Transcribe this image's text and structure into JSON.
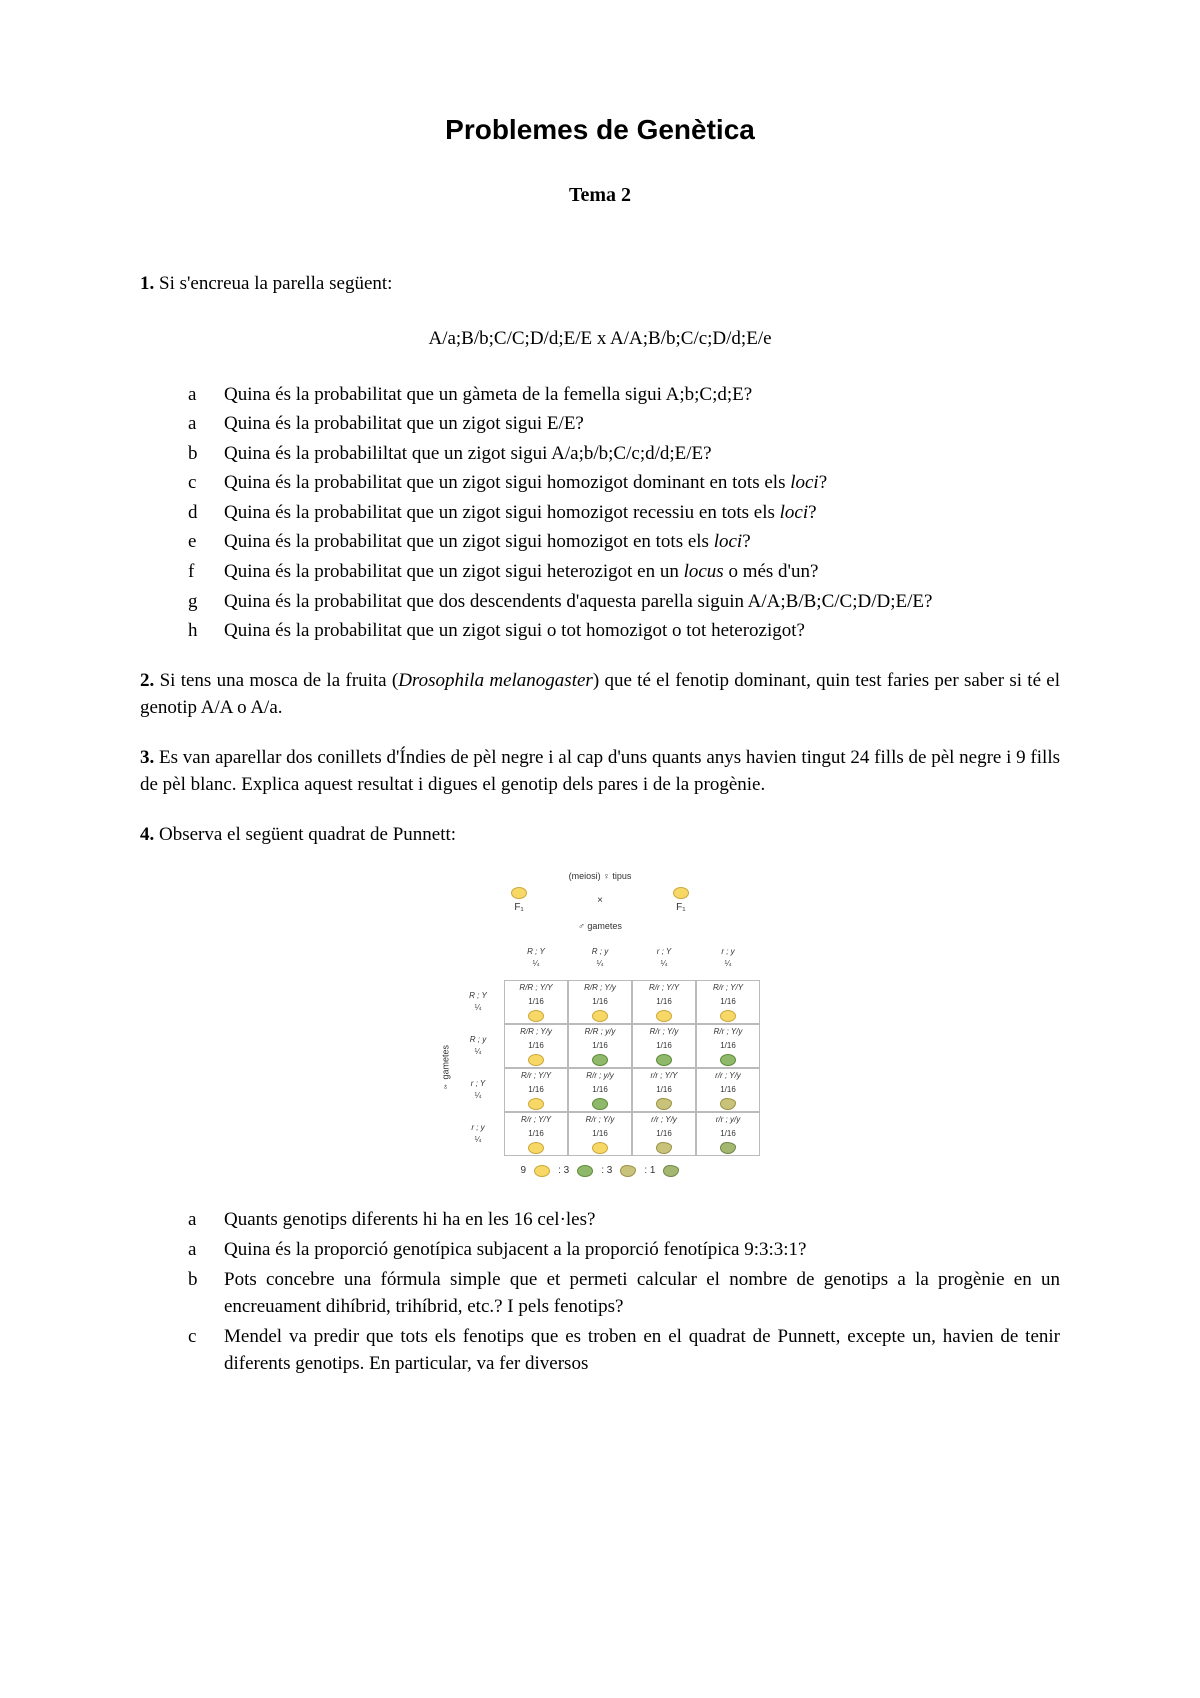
{
  "title": "Problemes de Genètica",
  "subtitle": "Tema 2",
  "p1": {
    "num": "1.",
    "intro": "Si s'encreua la parella següent:",
    "cross": "A/a;B/b;C/C;D/d;E/E     x     A/A;B/b;C/c;D/d;E/e",
    "items": [
      {
        "l": "a",
        "t": "Quina és la probabilitat que un gàmeta de la femella sigui A;b;C;d;E?"
      },
      {
        "l": "a",
        "t": "Quina és la probabilitat que un zigot sigui E/E?"
      },
      {
        "l": "b",
        "t": "Quina és la probabililtat que un zigot sigui A/a;b/b;C/c;d/d;E/E?"
      },
      {
        "l": "c",
        "t_html": "Quina és la probabilitat que un zigot sigui homozigot dominant en tots els <span class=\"italic\">loci</span>?"
      },
      {
        "l": "d",
        "t_html": "Quina és la probabilitat que un zigot sigui homozigot recessiu en tots els <span class=\"italic\">loci</span>?"
      },
      {
        "l": "e",
        "t_html": "Quina és la probabilitat que un zigot sigui homozigot en tots els <span class=\"italic\">loci</span>?"
      },
      {
        "l": "f",
        "t_html": "Quina és la probabilitat que un zigot sigui heterozigot en un <span class=\"italic\">locus</span> o més d'un?"
      },
      {
        "l": "g",
        "t": "Quina és la probabilitat que dos descendents d'aquesta parella siguin A/A;B/B;C/C;D/D;E/E?"
      },
      {
        "l": "h",
        "t": "Quina és la probabilitat que un zigot sigui o tot homozigot o tot heterozigot?"
      }
    ]
  },
  "p2": {
    "num": "2.",
    "t_html": "Si tens una mosca de la fruita (<span class=\"italic\">Drosophila melanogaster</span>) que té el fenotip dominant, quin test faries per saber si té el genotip A/A o A/a."
  },
  "p3": {
    "num": "3.",
    "t": "Es van aparellar dos conillets d'Índies de pèl negre i al cap d'uns quants anys havien tingut 24 fills de pèl negre i 9 fills de pèl blanc. Explica aquest resultat i digues el genotip dels pares i de la progènie."
  },
  "p4": {
    "num": "4.",
    "intro": "Observa el següent quadrat de Punnett:",
    "items": [
      {
        "l": "a",
        "t": "Quants genotips diferents hi ha en les 16 cel·les?"
      },
      {
        "l": "a",
        "t": "Quina és la proporció genotípica subjacent a la proporció fenotípica 9:3:3:1?"
      },
      {
        "l": "b",
        "t": "Pots concebre una fórmula simple que et permeti calcular el nombre de genotips a la progènie en un encreuament dihíbrid, trihíbrid, etc.? I pels fenotips?"
      },
      {
        "l": "c",
        "t": "Mendel va predir que tots els fenotips que es troben en el quadrat de Punnett, excepte un, havien de tenir diferents genotips. En particular, va fer diversos"
      }
    ]
  },
  "punnett": {
    "top_label": "(meiosi) ♀ tipus",
    "parent_left": "F₁",
    "parent_right": "F₁",
    "mid_label": "♂ gametes",
    "side_label": "♀ gametes",
    "col_heads": [
      {
        "g": "R ; Y",
        "f": "¼"
      },
      {
        "g": "R ; y",
        "f": "¼"
      },
      {
        "g": "r ; Y",
        "f": "¼"
      },
      {
        "g": "r ; y",
        "f": "¼"
      }
    ],
    "row_heads": [
      {
        "g": "R ; Y",
        "f": "¼"
      },
      {
        "g": "R ; y",
        "f": "¼"
      },
      {
        "g": "r ; Y",
        "f": "¼"
      },
      {
        "g": "r ; y",
        "f": "¼"
      }
    ],
    "cells": [
      [
        {
          "g": "R/R ; Y/Y",
          "f": "1/16",
          "pea": "pea-yellow"
        },
        {
          "g": "R/R ; Y/y",
          "f": "1/16",
          "pea": "pea-yellow"
        },
        {
          "g": "R/r ; Y/Y",
          "f": "1/16",
          "pea": "pea-yellow"
        },
        {
          "g": "R/r ; Y/Y",
          "f": "1/16",
          "pea": "pea-yellow"
        }
      ],
      [
        {
          "g": "R/R ; Y/y",
          "f": "1/16",
          "pea": "pea-yellow"
        },
        {
          "g": "R/R ; y/y",
          "f": "1/16",
          "pea": "pea-green"
        },
        {
          "g": "R/r ; Y/y",
          "f": "1/16",
          "pea": "pea-green"
        },
        {
          "g": "R/r ; Y/y",
          "f": "1/16",
          "pea": "pea-green"
        }
      ],
      [
        {
          "g": "R/r ; Y/Y",
          "f": "1/16",
          "pea": "pea-yellow"
        },
        {
          "g": "R/r ; y/y",
          "f": "1/16",
          "pea": "pea-green"
        },
        {
          "g": "r/r ; Y/Y",
          "f": "1/16",
          "pea": "pea-wrink"
        },
        {
          "g": "r/r ; Y/y",
          "f": "1/16",
          "pea": "pea-wrink"
        }
      ],
      [
        {
          "g": "R/r ; Y/Y",
          "f": "1/16",
          "pea": "pea-yellow"
        },
        {
          "g": "R/r ; Y/y",
          "f": "1/16",
          "pea": "pea-yellow"
        },
        {
          "g": "r/r ; Y/y",
          "f": "1/16",
          "pea": "pea-wrink"
        },
        {
          "g": "r/r ; y/y",
          "f": "1/16",
          "pea": "pea-gw"
        }
      ]
    ],
    "bottom": [
      {
        "n": "9",
        "pea": "pea-yellow"
      },
      {
        "n": ": 3",
        "pea": "pea-green"
      },
      {
        "n": ": 3",
        "pea": "pea-wrink"
      },
      {
        "n": ": 1",
        "pea": "pea-gw"
      }
    ]
  }
}
